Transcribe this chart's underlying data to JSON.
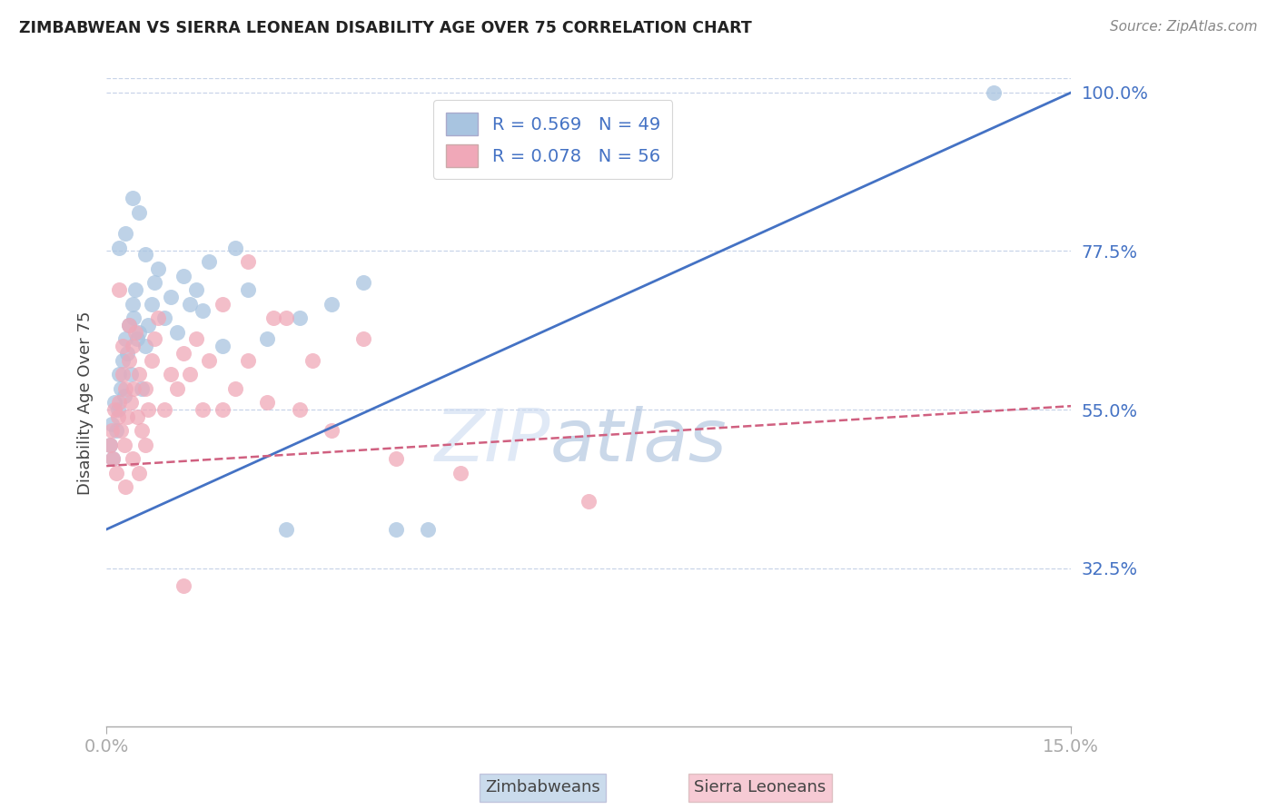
{
  "title": "ZIMBABWEAN VS SIERRA LEONEAN DISABILITY AGE OVER 75 CORRELATION CHART",
  "source": "Source: ZipAtlas.com",
  "ylabel": "Disability Age Over 75",
  "xmin": 0.0,
  "xmax": 15.0,
  "ymin": 10.0,
  "ymax": 102.0,
  "yticks": [
    32.5,
    55.0,
    77.5,
    100.0
  ],
  "ytick_labels": [
    "32.5%",
    "55.0%",
    "77.5%",
    "100.0%"
  ],
  "blue_color": "#a8c4e0",
  "pink_color": "#f0a8b8",
  "blue_line_color": "#4472c4",
  "pink_line_color": "#d06080",
  "grid_color": "#c8d4e8",
  "blue_R": 0.569,
  "pink_R": 0.078,
  "blue_N": 49,
  "pink_N": 56,
  "blue_x": [
    0.05,
    0.08,
    0.1,
    0.12,
    0.15,
    0.18,
    0.2,
    0.22,
    0.25,
    0.28,
    0.3,
    0.32,
    0.35,
    0.38,
    0.4,
    0.42,
    0.45,
    0.48,
    0.5,
    0.55,
    0.6,
    0.65,
    0.7,
    0.75,
    0.8,
    0.9,
    1.0,
    1.1,
    1.2,
    1.3,
    1.4,
    1.5,
    1.6,
    1.8,
    2.0,
    2.2,
    2.5,
    3.0,
    3.5,
    4.0,
    4.5,
    5.0,
    0.2,
    0.3,
    0.4,
    0.5,
    0.6,
    13.8,
    2.8
  ],
  "blue_y": [
    50,
    53,
    48,
    56,
    52,
    55,
    60,
    58,
    62,
    57,
    65,
    63,
    67,
    60,
    70,
    68,
    72,
    65,
    66,
    58,
    64,
    67,
    70,
    73,
    75,
    68,
    71,
    66,
    74,
    70,
    72,
    69,
    76,
    64,
    78,
    72,
    65,
    68,
    70,
    73,
    38,
    38,
    78,
    80,
    85,
    83,
    77,
    100,
    38
  ],
  "pink_x": [
    0.05,
    0.08,
    0.1,
    0.12,
    0.15,
    0.18,
    0.2,
    0.22,
    0.25,
    0.28,
    0.3,
    0.32,
    0.35,
    0.38,
    0.4,
    0.42,
    0.45,
    0.48,
    0.5,
    0.55,
    0.6,
    0.65,
    0.7,
    0.75,
    0.8,
    0.9,
    1.0,
    1.1,
    1.2,
    1.3,
    1.4,
    1.5,
    1.6,
    1.8,
    2.0,
    2.2,
    2.5,
    3.0,
    3.5,
    1.8,
    2.2,
    2.8,
    3.2,
    4.0,
    4.5,
    5.5,
    7.5,
    0.3,
    0.4,
    0.5,
    0.6,
    0.2,
    0.35,
    0.25,
    2.6,
    1.2
  ],
  "pink_y": [
    50,
    52,
    48,
    55,
    46,
    54,
    56,
    52,
    60,
    50,
    58,
    54,
    62,
    56,
    64,
    58,
    66,
    54,
    60,
    52,
    58,
    55,
    62,
    65,
    68,
    55,
    60,
    58,
    63,
    60,
    65,
    55,
    62,
    55,
    58,
    62,
    56,
    55,
    52,
    70,
    76,
    68,
    62,
    65,
    48,
    46,
    42,
    44,
    48,
    46,
    50,
    72,
    67,
    64,
    68,
    30
  ]
}
